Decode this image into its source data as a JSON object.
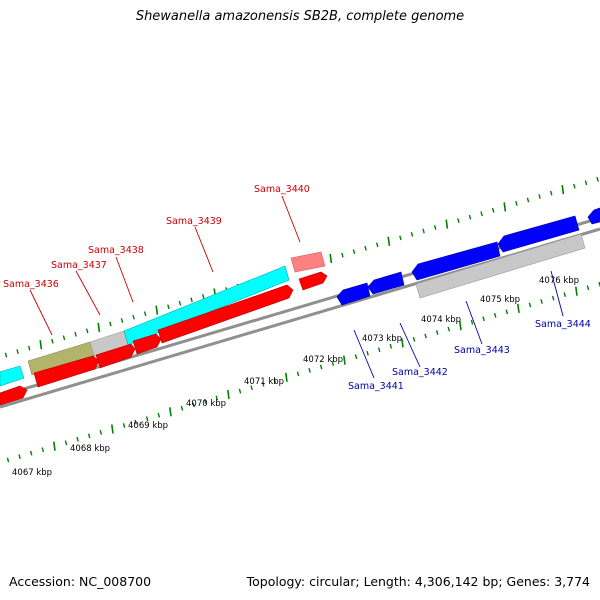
{
  "title": "Shewanella amazonensis SB2B, complete genome",
  "footer": {
    "accession": "Accession: NC_008700",
    "summary": "Topology: circular; Length: 4,306,142 bp; Genes: 3,774"
  },
  "colors": {
    "forward_gene": "#ff0000",
    "reverse_gene": "#0000ff",
    "forward_label": "#cc0000",
    "reverse_label": "#0000aa",
    "rrna": "#00ffff",
    "trna": "#b3b36b",
    "pseudo": "#c0c0c0",
    "backbone": "#808080",
    "tick": "#008000",
    "light_red": "#ff8080"
  },
  "kbp_labels": [
    "4067 kbp",
    "4068 kbp",
    "4069 kbp",
    "4070 kbp",
    "4071 kbp",
    "4072 kbp",
    "4073 kbp",
    "4074 kbp",
    "4075 kbp",
    "4076 kbp"
  ],
  "gene_labels_forward": [
    "Sama_3436",
    "Sama_3437",
    "Sama_3438",
    "Sama_3439",
    "Sama_3440"
  ],
  "gene_labels_reverse": [
    "Sama_3441",
    "Sama_3442",
    "Sama_3443",
    "Sama_3444"
  ]
}
